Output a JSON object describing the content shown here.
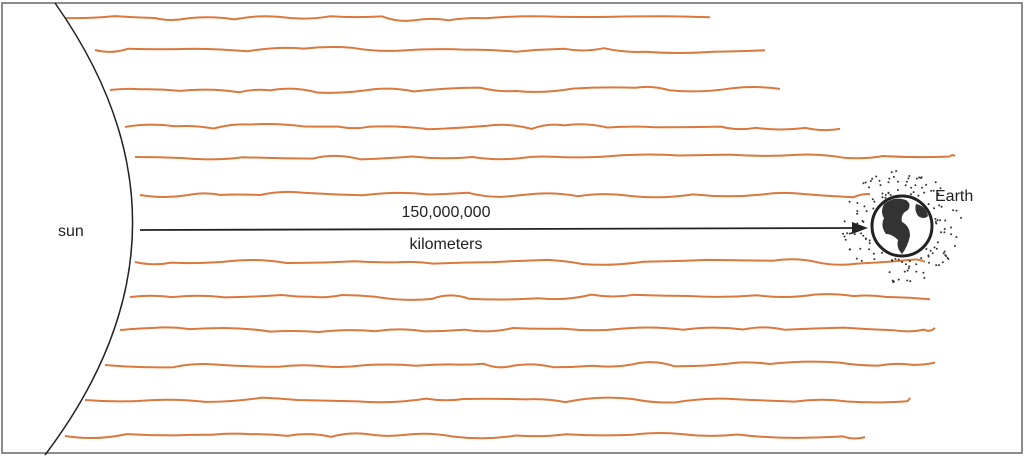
{
  "labels": {
    "sun": "sun",
    "distance": "150,000,000",
    "unit": "kilometers",
    "earth": "Earth"
  }
}
